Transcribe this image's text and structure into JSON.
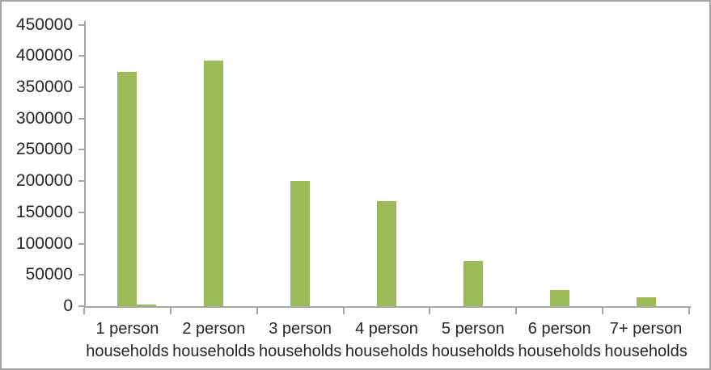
{
  "chart_data": {
    "type": "bar",
    "title": "",
    "xlabel": "",
    "ylabel": "",
    "categories": [
      "1 person households",
      "2 person households",
      "3 person households",
      "4 person households",
      "5 person households",
      "6 person households",
      "7+ person households"
    ],
    "category_lines": [
      [
        "1 person",
        "households"
      ],
      [
        "2 person",
        "households"
      ],
      [
        "3 person",
        "households"
      ],
      [
        "4 person",
        "households"
      ],
      [
        "5 person",
        "households"
      ],
      [
        "6 person",
        "households"
      ],
      [
        "7+ person",
        "households"
      ]
    ],
    "values": [
      375000,
      392000,
      200000,
      168000,
      72000,
      26000,
      14000
    ],
    "extra_baseline_sliver": {
      "category_index": 0,
      "approx_value": 2500
    },
    "ylim": [
      0,
      450000
    ],
    "ytick_step": 50000,
    "ytick_labels": [
      "0",
      "50000",
      "100000",
      "150000",
      "200000",
      "250000",
      "300000",
      "350000",
      "400000",
      "450000"
    ],
    "grid": false,
    "legend": false,
    "colors": {
      "bar": "#9bbb59",
      "axis": "#a6a6a6",
      "text": "#262626",
      "border": "#a3a3a3",
      "background": "#ffffff"
    }
  }
}
